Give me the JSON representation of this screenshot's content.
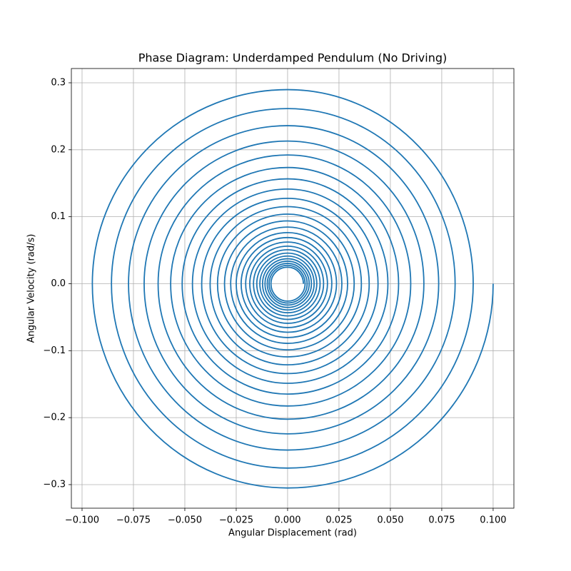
{
  "chart_data": {
    "type": "line",
    "title": "Phase Diagram: Underdamped Pendulum (No Driving)",
    "x_label": "Angular Displacement (rad)",
    "y_label": "Angular Velocity (rad/s)",
    "color": "#1f77b4",
    "grid": true,
    "xlim": [
      -0.1052,
      0.1101
    ],
    "ylim": [
      -0.3352,
      0.3213
    ],
    "xticks": [
      {
        "value": -0.1,
        "label": "−0.100"
      },
      {
        "value": -0.075,
        "label": "−0.075"
      },
      {
        "value": -0.05,
        "label": "−0.050"
      },
      {
        "value": -0.025,
        "label": "−0.025"
      },
      {
        "value": 0,
        "label": "0.000"
      },
      0.025,
      {
        "value": 0.05,
        "label": "0.050"
      },
      0.075,
      {
        "value": 0.1,
        "label": "0.100"
      }
    ],
    "yticks": [
      {
        "value": -0.3,
        "label": "−0.3"
      },
      {
        "value": -0.2,
        "label": "−0.2"
      },
      {
        "value": -0.1,
        "label": "−0.1"
      },
      {
        "value": 0,
        "label": "0.0"
      },
      0.1,
      0.2,
      0.3
    ],
    "x": [
      0.1,
      0,
      -0.095,
      0,
      0.0903,
      0,
      -0.0857,
      0,
      0.0815,
      0,
      -0.0774,
      0,
      0.0735,
      0,
      -0.0698,
      0,
      0.0663,
      0,
      -0.063,
      0,
      0.0599,
      0,
      -0.0569,
      0,
      0.054,
      0,
      -0.0513,
      0,
      0.0488,
      0,
      -0.0463,
      0,
      0.044,
      0,
      -0.0418,
      0,
      0.0397,
      0,
      -0.0377,
      0,
      0.0359,
      0,
      -0.0341,
      0,
      0.0324,
      0,
      -0.0307,
      0,
      0.0292,
      0,
      -0.0277,
      0,
      0.0264,
      0,
      -0.025,
      0,
      0.0238,
      0,
      -0.0226,
      0,
      0.0215,
      0,
      -0.0204,
      0,
      0.0194,
      0,
      -0.0184,
      0,
      0.0175,
      0,
      -0.0166,
      0,
      0.0158,
      0,
      -0.015,
      0,
      0.0142,
      0,
      -0.0135,
      0,
      0.0129,
      0,
      -0.0122,
      0,
      0.0116,
      0,
      -0.011,
      0,
      0.0105,
      0,
      -0.0099,
      0,
      0.0095,
      0,
      -0.009,
      0,
      0.0085,
      0,
      -0.0081,
      0,
      0.0077
    ],
    "y": [
      0,
      -0.305,
      0,
      0.2898,
      0,
      -0.2753,
      0,
      0.2615,
      0,
      -0.2484,
      0,
      0.236,
      0,
      -0.2242,
      0,
      0.213,
      0,
      -0.2023,
      0,
      0.1922,
      0,
      -0.1826,
      0,
      0.1735,
      0,
      -0.1648,
      0,
      0.1566,
      0,
      -0.1487,
      0,
      0.1413,
      0,
      -0.1342,
      0,
      0.1275,
      0,
      -0.1211,
      0,
      0.1151,
      0,
      -0.1093,
      0,
      0.1039,
      0,
      -0.0987,
      0,
      0.0938,
      0,
      -0.0891,
      0,
      0.0846,
      0,
      -0.0804,
      0,
      0.0763,
      0,
      -0.0725,
      0,
      0.0689,
      0,
      -0.0655,
      0,
      0.0622,
      0,
      -0.0591,
      0,
      0.0561,
      0,
      -0.0533,
      0,
      0.0507,
      0,
      -0.0481,
      0,
      0.0457,
      0,
      -0.0434,
      0,
      0.0413,
      0,
      -0.0392,
      0,
      0.0372,
      0,
      -0.0354,
      0,
      0.0336,
      0,
      -0.0319,
      0,
      0.0303,
      0,
      -0.0288,
      0,
      0.0274,
      0,
      -0.026,
      0,
      0.0247,
      0
    ]
  }
}
